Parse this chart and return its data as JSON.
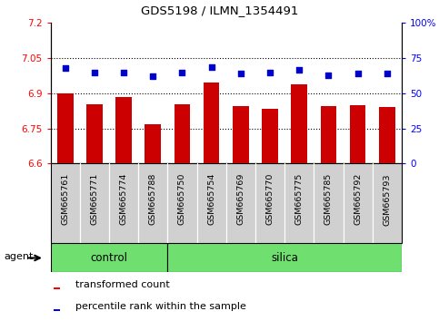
{
  "title": "GDS5198 / ILMN_1354491",
  "samples": [
    "GSM665761",
    "GSM665771",
    "GSM665774",
    "GSM665788",
    "GSM665750",
    "GSM665754",
    "GSM665769",
    "GSM665770",
    "GSM665775",
    "GSM665785",
    "GSM665792",
    "GSM665793"
  ],
  "groups": [
    "control",
    "control",
    "control",
    "control",
    "silica",
    "silica",
    "silica",
    "silica",
    "silica",
    "silica",
    "silica",
    "silica"
  ],
  "transformed_count": [
    6.9,
    6.855,
    6.885,
    6.77,
    6.855,
    6.945,
    6.845,
    6.835,
    6.94,
    6.845,
    6.848,
    6.84
  ],
  "percentile_rank": [
    68,
    65,
    65,
    62,
    65,
    69,
    64,
    65,
    67,
    63,
    64,
    64
  ],
  "ylim_left": [
    6.6,
    7.2
  ],
  "ylim_right": [
    0,
    100
  ],
  "yticks_left": [
    6.6,
    6.75,
    6.9,
    7.05,
    7.2
  ],
  "yticks_right": [
    0,
    25,
    50,
    75,
    100
  ],
  "ytick_labels_left": [
    "6.6",
    "6.75",
    "6.9",
    "7.05",
    "7.2"
  ],
  "ytick_labels_right": [
    "0",
    "25",
    "50",
    "75",
    "100%"
  ],
  "hlines": [
    6.75,
    6.9,
    7.05
  ],
  "bar_color": "#cc0000",
  "dot_color": "#0000cc",
  "bar_width": 0.55,
  "bar_bottom": 6.6,
  "green_color": "#6fe06f",
  "gray_color": "#d0d0d0",
  "agent_label": "agent",
  "control_label": "control",
  "silica_label": "silica",
  "legend_labels": [
    "transformed count",
    "percentile rank within the sample"
  ],
  "n_control": 4,
  "n_silica": 8
}
